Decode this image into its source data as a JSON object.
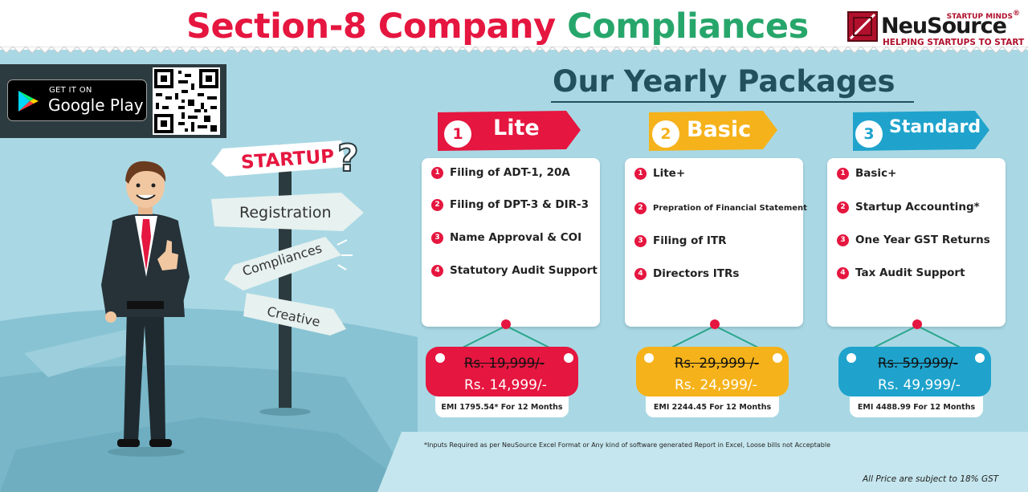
{
  "header": {
    "title_part1": "Section-8 Company",
    "title_part2": "Compliances",
    "title_color1": "#e5163f",
    "title_color2": "#27a66b"
  },
  "logo": {
    "top_text": "STARTUP MINDS",
    "registered": "®",
    "name": "NeuSource",
    "tagline": "HELPING STARTUPS TO START"
  },
  "app": {
    "small": "GET IT ON",
    "big": "Google Play",
    "qr_icon": "qr-code-icon"
  },
  "packages_title": "Our Yearly Packages",
  "signs": {
    "startup": "STARTUP",
    "question": "?",
    "registration": "Registration",
    "compliances": "Compliances",
    "creative": "Creative"
  },
  "plans": [
    {
      "num": "1",
      "name": "Lite",
      "color": "#e5163f",
      "items": [
        {
          "n": "1",
          "text": "Filing of ADT-1, 20A"
        },
        {
          "n": "2",
          "text": "Filing of DPT-3 & DIR-3"
        },
        {
          "n": "3",
          "text": "Name Approval & COI"
        },
        {
          "n": "4",
          "text": "Statutory Audit Support"
        }
      ],
      "old_price": "Rs. 19,999/-",
      "new_price": "Rs. 14,999/-",
      "emi": "EMI 1795.54* For 12 Months"
    },
    {
      "num": "2",
      "name": "Basic",
      "color": "#f5b21a",
      "items": [
        {
          "n": "1",
          "text": "Lite+"
        },
        {
          "n": "2",
          "text": "Prepration of Financial Statement"
        },
        {
          "n": "3",
          "text": "Filing of ITR"
        },
        {
          "n": "4",
          "text": "Directors ITRs"
        }
      ],
      "old_price": "Rs. 29,999 /-",
      "new_price": "Rs. 24,999/-",
      "emi": "EMI 2244.45 For 12 Months"
    },
    {
      "num": "3",
      "name": "Standard",
      "color": "#1fa3cc",
      "items": [
        {
          "n": "1",
          "text": "Basic+"
        },
        {
          "n": "2",
          "text": "Startup Accounting*"
        },
        {
          "n": "3",
          "text": "One Year GST Returns"
        },
        {
          "n": "4",
          "text": "Tax Audit Support"
        }
      ],
      "old_price": "Rs. 59,999/-",
      "new_price": "Rs. 49,999/-",
      "emi": "EMI 4488.99 For 12 Months"
    }
  ],
  "footnote": "*Inputs Required as per NeuSource Excel Format or Any kind of software generated Report in Excel, Loose bills not Acceptable",
  "gst_note": "All Price are subject to 18% GST"
}
